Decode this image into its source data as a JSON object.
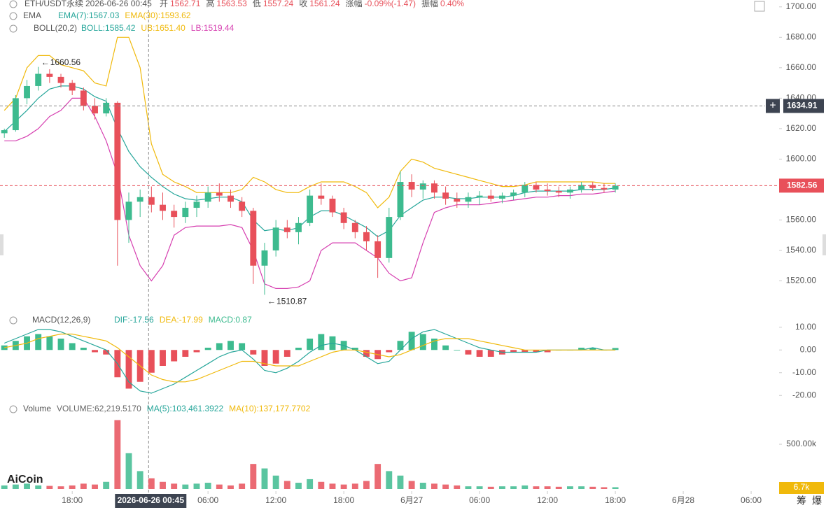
{
  "chart_data": [
    {
      "type": "candlestick",
      "title": "ETH/USDT永续",
      "subtitle": "2026-06-26 00:45",
      "ohlc_legend": [
        {
          "label": "开",
          "value": "1562.71"
        },
        {
          "label": "高",
          "value": "1563.53"
        },
        {
          "label": "低",
          "value": "1557.24"
        },
        {
          "label": "收",
          "value": "1561.24"
        },
        {
          "label": "涨幅",
          "value": "-0.09%(-1.47)"
        },
        {
          "label": "振幅",
          "value": "0.40%"
        }
      ],
      "indicators": [
        {
          "name": "EMA",
          "items": [
            {
              "text": "EMA(7):1567.03",
              "color": "#26a69a"
            },
            {
              "text": "EMA(30):1593.62",
              "color": "#f0b90b"
            }
          ]
        },
        {
          "name": "BOLL(20,2)",
          "items": [
            {
              "text": "BOLL:1585.42",
              "color": "#26a69a"
            },
            {
              "text": "UB:1651.40",
              "color": "#f0b90b"
            },
            {
              "text": "LB:1519.44",
              "color": "#d63fb0"
            }
          ]
        }
      ],
      "x": [
        "2026-06-25 12:00",
        "2026-06-25 13:00",
        "2026-06-25 14:00",
        "2026-06-25 15:00",
        "2026-06-25 16:00",
        "2026-06-25 17:00",
        "2026-06-25 18:00",
        "2026-06-25 19:00",
        "2026-06-25 20:00",
        "2026-06-25 21:00",
        "2026-06-25 22:00",
        "2026-06-25 23:00",
        "2026-06-26 00:00",
        "2026-06-26 01:00",
        "2026-06-26 02:00",
        "2026-06-26 03:00",
        "2026-06-26 04:00",
        "2026-06-26 05:00",
        "2026-06-26 06:00",
        "2026-06-26 07:00",
        "2026-06-26 08:00",
        "2026-06-26 09:00",
        "2026-06-26 10:00",
        "2026-06-26 11:00",
        "2026-06-26 12:00",
        "2026-06-26 13:00",
        "2026-06-26 14:00",
        "2026-06-26 15:00",
        "2026-06-26 16:00",
        "2026-06-26 17:00",
        "2026-06-26 18:00",
        "2026-06-26 19:00",
        "2026-06-26 20:00",
        "2026-06-26 21:00",
        "2026-06-26 22:00",
        "2026-06-26 23:00",
        "2026-06-27 00:00",
        "2026-06-27 01:00",
        "2026-06-27 02:00",
        "2026-06-27 03:00",
        "2026-06-27 04:00",
        "2026-06-27 05:00",
        "2026-06-27 06:00",
        "2026-06-27 07:00",
        "2026-06-27 08:00",
        "2026-06-27 09:00",
        "2026-06-27 10:00",
        "2026-06-27 11:00",
        "2026-06-27 12:00",
        "2026-06-27 13:00",
        "2026-06-27 14:00",
        "2026-06-27 15:00",
        "2026-06-27 16:00",
        "2026-06-27 17:00",
        "2026-06-27 18:00"
      ],
      "open": [
        1617,
        1619,
        1640,
        1648,
        1656,
        1654,
        1650,
        1645,
        1635,
        1630,
        1637,
        1560,
        1572,
        1575,
        1570,
        1566,
        1562,
        1568,
        1572,
        1578,
        1576,
        1572,
        1566,
        1530,
        1540,
        1555,
        1552,
        1558,
        1576,
        1574,
        1565,
        1558,
        1552,
        1546,
        1535,
        1562,
        1585,
        1580,
        1584,
        1578,
        1574,
        1572,
        1575,
        1576,
        1574,
        1576,
        1578,
        1583,
        1580,
        1579,
        1578,
        1580,
        1583,
        1581,
        1580
      ],
      "high": [
        1620,
        1642,
        1652,
        1660.56,
        1659,
        1656,
        1652,
        1647,
        1640,
        1640,
        1638,
        1578,
        1580,
        1582,
        1578,
        1570,
        1572,
        1576,
        1582,
        1584,
        1580,
        1575,
        1568,
        1545,
        1560,
        1560,
        1562,
        1580,
        1584,
        1576,
        1568,
        1560,
        1556,
        1550,
        1568,
        1592,
        1590,
        1586,
        1586,
        1582,
        1578,
        1578,
        1579,
        1580,
        1578,
        1580,
        1585,
        1585,
        1584,
        1582,
        1582,
        1585,
        1585,
        1584,
        1584
      ],
      "low": [
        1614,
        1618,
        1636,
        1645,
        1650,
        1647,
        1642,
        1632,
        1626,
        1628,
        1530,
        1545,
        1562,
        1565,
        1560,
        1555,
        1558,
        1562,
        1568,
        1572,
        1568,
        1562,
        1518,
        1510.87,
        1536,
        1548,
        1544,
        1556,
        1570,
        1562,
        1554,
        1548,
        1540,
        1522,
        1532,
        1560,
        1575,
        1574,
        1574,
        1570,
        1568,
        1568,
        1570,
        1572,
        1571,
        1573,
        1575,
        1578,
        1576,
        1575,
        1574,
        1578,
        1579,
        1578,
        1578
      ],
      "close": [
        1619,
        1640,
        1648,
        1656,
        1654,
        1650,
        1645,
        1635,
        1630,
        1637,
        1560,
        1572,
        1575,
        1570,
        1566,
        1562,
        1568,
        1572,
        1578,
        1576,
        1572,
        1566,
        1530,
        1540,
        1555,
        1552,
        1558,
        1576,
        1574,
        1565,
        1558,
        1552,
        1546,
        1535,
        1562,
        1585,
        1580,
        1584,
        1578,
        1574,
        1572,
        1575,
        1576,
        1574,
        1576,
        1578,
        1583,
        1580,
        1579,
        1578,
        1580,
        1583,
        1581,
        1580,
        1582.56
      ],
      "up_color": "#3dbb8f",
      "down_color": "#e8505a",
      "overlays": [
        {
          "color": "#f0b90b",
          "values": [
            1632,
            1640,
            1660,
            1668,
            1668,
            1662,
            1660,
            1658,
            1650,
            1648,
            1680,
            1680,
            1660,
            1610,
            1590,
            1585,
            1582,
            1578,
            1578,
            1578,
            1578,
            1580,
            1588,
            1585,
            1580,
            1578,
            1578,
            1582,
            1585,
            1585,
            1585,
            1582,
            1578,
            1568,
            1575,
            1592,
            1600,
            1598,
            1594,
            1592,
            1590,
            1588,
            1586,
            1584,
            1582,
            1582,
            1583,
            1585,
            1585,
            1585,
            1585,
            1585,
            1585,
            1584,
            1584
          ]
        },
        {
          "color": "#d63fb0",
          "values": [
            1612,
            1612,
            1615,
            1620,
            1628,
            1632,
            1640,
            1640,
            1628,
            1612,
            1590,
            1550,
            1530,
            1520,
            1530,
            1550,
            1555,
            1556,
            1556,
            1556,
            1557,
            1555,
            1540,
            1518,
            1515,
            1515,
            1516,
            1520,
            1540,
            1545,
            1545,
            1545,
            1540,
            1535,
            1525,
            1520,
            1522,
            1545,
            1565,
            1568,
            1570,
            1570,
            1570,
            1571,
            1572,
            1573,
            1574,
            1575,
            1575,
            1576,
            1576,
            1577,
            1577,
            1578,
            1579
          ]
        },
        {
          "color": "#26a69a",
          "values": [
            1618,
            1625,
            1632,
            1640,
            1646,
            1648,
            1648,
            1646,
            1641,
            1638,
            1620,
            1605,
            1595,
            1588,
            1582,
            1577,
            1574,
            1573,
            1574,
            1575,
            1575,
            1572,
            1560,
            1553,
            1554,
            1553,
            1555,
            1562,
            1566,
            1566,
            1563,
            1559,
            1555,
            1549,
            1553,
            1563,
            1568,
            1573,
            1575,
            1575,
            1574,
            1574,
            1575,
            1575,
            1575,
            1576,
            1578,
            1579,
            1579,
            1579,
            1579,
            1580,
            1580,
            1580,
            1581
          ]
        }
      ],
      "xlim": [
        "2026-06-25 11:37",
        "2026-06-28 07:14"
      ],
      "xticks": [
        {
          "value": "2026-06-25 18:00",
          "label": "18:00"
        },
        {
          "value": "2026-06-26 06:00",
          "label": "06:00"
        },
        {
          "value": "2026-06-26 12:00",
          "label": "12:00"
        },
        {
          "value": "2026-06-26 18:00",
          "label": "18:00"
        },
        {
          "value": "2026-06-27 00:00",
          "label": "6月27"
        },
        {
          "value": "2026-06-27 06:00",
          "label": "06:00"
        },
        {
          "value": "2026-06-27 12:00",
          "label": "12:00"
        },
        {
          "value": "2026-06-27 18:00",
          "label": "18:00"
        },
        {
          "value": "2026-06-28 00:00",
          "label": "6月28"
        },
        {
          "value": "2026-06-28 06:00",
          "label": "06:00"
        }
      ],
      "ylim": [
        1500,
        1704.5
      ],
      "yticks": [
        {
          "value": 1520,
          "label": "1520.00"
        },
        {
          "value": 1540,
          "label": "1540.00"
        },
        {
          "value": 1560,
          "label": "1560.00"
        },
        {
          "value": 1580,
          "label": "1580.00"
        },
        {
          "value": 1600,
          "label": "1600.00"
        },
        {
          "value": 1620,
          "label": "1620.00"
        },
        {
          "value": 1640,
          "label": "1640.00"
        },
        {
          "value": 1660,
          "label": "1660.00"
        },
        {
          "value": 1680,
          "label": "1680.00"
        },
        {
          "value": 1700,
          "label": "1700.00"
        }
      ],
      "high_marker": {
        "x": "2026-06-25 15:00",
        "value": 1660.56
      },
      "low_marker": {
        "x": "2026-06-26 11:00",
        "value": 1510.87
      },
      "crosshair": {
        "x": "2026-06-26 00:45",
        "price": 1634.91
      },
      "last_price": 1582.56
    },
    {
      "type": "macd",
      "title": "MACD(12,26,9)",
      "legend": [
        {
          "text": "DIF:-17.56",
          "color": "#26a69a"
        },
        {
          "text": "DEA:-17.99",
          "color": "#f0b90b"
        },
        {
          "text": "MACD:0.87",
          "color": "#3dbb8f"
        }
      ],
      "histogram": [
        2,
        4,
        6,
        7,
        6,
        5,
        3,
        1,
        -1,
        -2,
        -12,
        -17,
        -14,
        -10,
        -7,
        -5,
        -3,
        -1,
        1,
        3,
        4,
        3,
        -2,
        -7,
        -6,
        -3,
        1,
        5,
        7,
        6,
        4,
        1,
        -3,
        -4,
        -1,
        4,
        8,
        7,
        5,
        2,
        0,
        -2,
        -3,
        -3,
        -2,
        -1,
        -1,
        -1,
        -1,
        0,
        0,
        1,
        1,
        0,
        0.87
      ],
      "series": [
        {
          "color": "#26a69a",
          "values": [
            3,
            5,
            7,
            9,
            9,
            8,
            6,
            4,
            2,
            0,
            -6,
            -14,
            -18,
            -19,
            -17,
            -15,
            -12,
            -9,
            -6,
            -3,
            -1,
            0,
            -4,
            -9,
            -10,
            -8,
            -5,
            -1,
            2,
            3,
            2,
            0,
            -3,
            -6,
            -5,
            0,
            5,
            8,
            9,
            7,
            5,
            3,
            1,
            0,
            -1,
            -1,
            -1,
            -1,
            0,
            0,
            0,
            0,
            1,
            0,
            0
          ]
        },
        {
          "color": "#f0b90b",
          "values": [
            1,
            2,
            3,
            5,
            6,
            7,
            7,
            6,
            5,
            4,
            1,
            -3,
            -7,
            -11,
            -13,
            -14,
            -14,
            -13,
            -11,
            -9,
            -7,
            -5,
            -5,
            -6,
            -7,
            -7,
            -7,
            -5,
            -3,
            -1,
            0,
            0,
            -1,
            -2,
            -3,
            -2,
            0,
            2,
            4,
            5,
            5,
            5,
            4,
            3,
            2,
            1,
            0,
            0,
            0,
            0,
            0,
            0,
            0,
            0,
            0
          ]
        }
      ],
      "up_color": "#3dbb8f",
      "down_color": "#e8505a",
      "ylim": [
        -23,
        13
      ],
      "yticks": [
        {
          "value": 10,
          "label": "10.00"
        },
        {
          "value": 0,
          "label": "0.00"
        },
        {
          "value": -10,
          "label": "-10.00"
        },
        {
          "value": -20,
          "label": "-20.00"
        }
      ]
    },
    {
      "type": "volume",
      "title": "Volume",
      "legend": [
        {
          "text": "VOLUME:62,219.5170",
          "color": "#666666"
        },
        {
          "text": "MA(5):103,461.3922",
          "color": "#26a69a"
        },
        {
          "text": "MA(10):137,177.7702",
          "color": "#f0b90b"
        }
      ],
      "values": [
        40000,
        50000,
        60000,
        40000,
        35000,
        30000,
        40000,
        60000,
        50000,
        80000,
        770000,
        400000,
        200000,
        120000,
        80000,
        60000,
        50000,
        60000,
        70000,
        50000,
        40000,
        60000,
        280000,
        230000,
        150000,
        90000,
        70000,
        110000,
        80000,
        60000,
        50000,
        60000,
        90000,
        280000,
        200000,
        150000,
        90000,
        70000,
        60000,
        50000,
        40000,
        30000,
        30000,
        25000,
        30000,
        30000,
        40000,
        30000,
        30000,
        25000,
        30000,
        30000,
        25000,
        20000,
        20000
      ],
      "ylim": [
        0,
        930000
      ],
      "yticks": [
        {
          "value": 500000,
          "label": "500.00k"
        }
      ],
      "current_label": "6.7k"
    }
  ],
  "logo": "AiCoin",
  "tools": [
    "筹",
    "爆"
  ]
}
